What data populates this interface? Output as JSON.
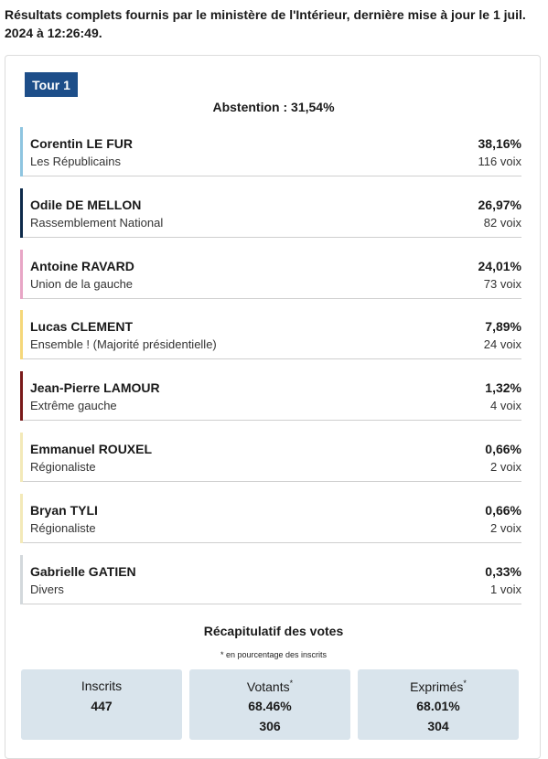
{
  "header": {
    "text": "Résultats complets fournis par le ministère de l'Intérieur, dernière mise à jour le 1 juil. 2024 à 12:26:49."
  },
  "tour": {
    "label": "Tour 1"
  },
  "abstention": {
    "text": "Abstention : 31,54%"
  },
  "colors": {
    "tab": "#1d4e89",
    "stat_bg": "#d9e4ec"
  },
  "candidates": [
    {
      "name": "Corentin LE FUR",
      "party": "Les Républicains",
      "pct": "38,16%",
      "voix": "116 voix",
      "color": "#8ec5e0"
    },
    {
      "name": "Odile DE MELLON",
      "party": "Rassemblement National",
      "pct": "26,97%",
      "voix": "82 voix",
      "color": "#0d2a4a"
    },
    {
      "name": "Antoine RAVARD",
      "party": "Union de la gauche",
      "pct": "24,01%",
      "voix": "73 voix",
      "color": "#e8a6c6"
    },
    {
      "name": "Lucas CLEMENT",
      "party": "Ensemble ! (Majorité présidentielle)",
      "pct": "7,89%",
      "voix": "24 voix",
      "color": "#f5d77a"
    },
    {
      "name": "Jean-Pierre LAMOUR",
      "party": "Extrême gauche",
      "pct": "1,32%",
      "voix": "4 voix",
      "color": "#7a1a1a"
    },
    {
      "name": "Emmanuel ROUXEL",
      "party": "Régionaliste",
      "pct": "0,66%",
      "voix": "2 voix",
      "color": "#f3e9b8"
    },
    {
      "name": "Bryan TYLI",
      "party": "Régionaliste",
      "pct": "0,66%",
      "voix": "2 voix",
      "color": "#f3e9b8"
    },
    {
      "name": "Gabrielle GATIEN",
      "party": "Divers",
      "pct": "0,33%",
      "voix": "1 voix",
      "color": "#d3d8dc"
    }
  ],
  "recap": {
    "title": "Récapitulatif des votes",
    "note": "* en pourcentage des inscrits",
    "inscrits": {
      "label": "Inscrits",
      "value": "447"
    },
    "votants": {
      "label": "Votants",
      "star": "*",
      "pct": "68.46%",
      "value": "306"
    },
    "exprimes": {
      "label": "Exprimés",
      "star": "*",
      "pct": "68.01%",
      "value": "304"
    }
  }
}
